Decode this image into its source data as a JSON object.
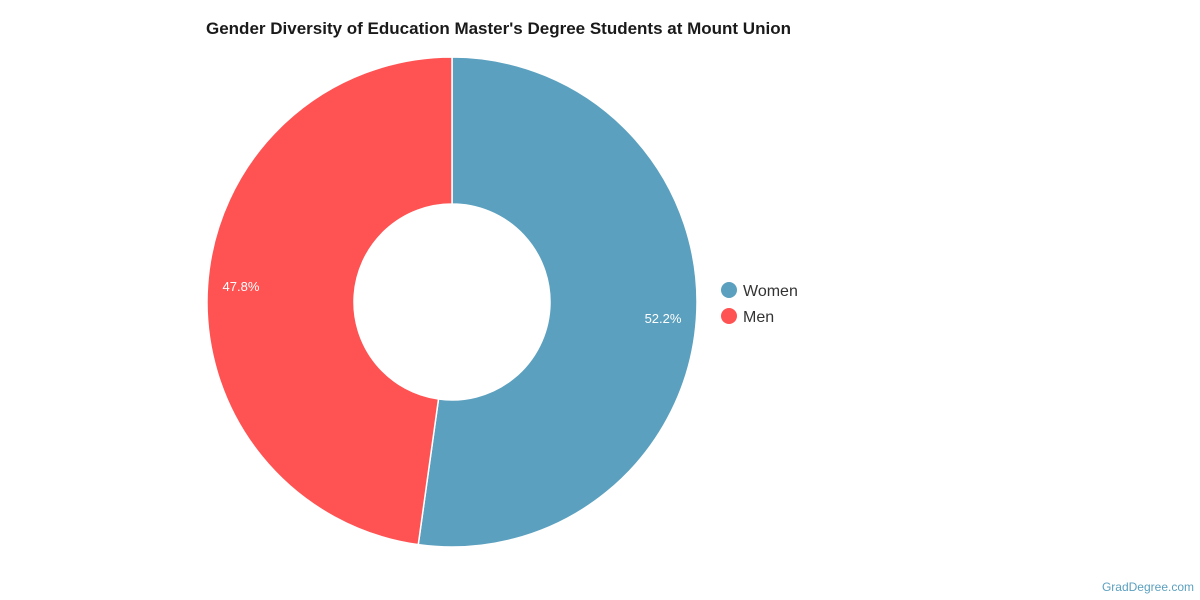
{
  "chart_data": {
    "type": "pie",
    "donut": true,
    "title": "Gender Diversity of Education Master's Degree Students at Mount Union",
    "categories": [
      "Women",
      "Men"
    ],
    "values": [
      52.2,
      47.8
    ],
    "labels": [
      "52.2%",
      "47.8%"
    ],
    "colors": [
      "#5ba0bf",
      "#ff5252"
    ],
    "legend_position": "right",
    "watermark": "GradDegree.com"
  }
}
